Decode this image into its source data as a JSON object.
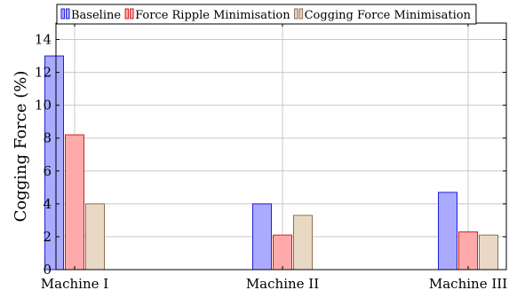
{
  "chart_data": {
    "type": "bar",
    "title": "",
    "xlabel": "",
    "ylabel": "Cogging Force (%)",
    "ylim": [
      0,
      15
    ],
    "yticks": [
      0,
      2,
      4,
      6,
      8,
      10,
      12,
      14
    ],
    "grid": true,
    "legend_position": "top",
    "categories": [
      "Machine I",
      "Machine II",
      "Machine III"
    ],
    "series": [
      {
        "name": "Baseline",
        "values": [
          13,
          4,
          4.7
        ],
        "fill": "#aaaaff",
        "stroke": "#1f1fd6"
      },
      {
        "name": "Force Ripple Minimisation",
        "values": [
          8.2,
          2.1,
          2.3
        ],
        "fill": "#ffaaaa",
        "stroke": "#d01f1f"
      },
      {
        "name": "Cogging Force Minimisation",
        "values": [
          4,
          3.3,
          2.1
        ],
        "fill": "#e9d9c4",
        "stroke": "#8a6f55"
      }
    ]
  }
}
